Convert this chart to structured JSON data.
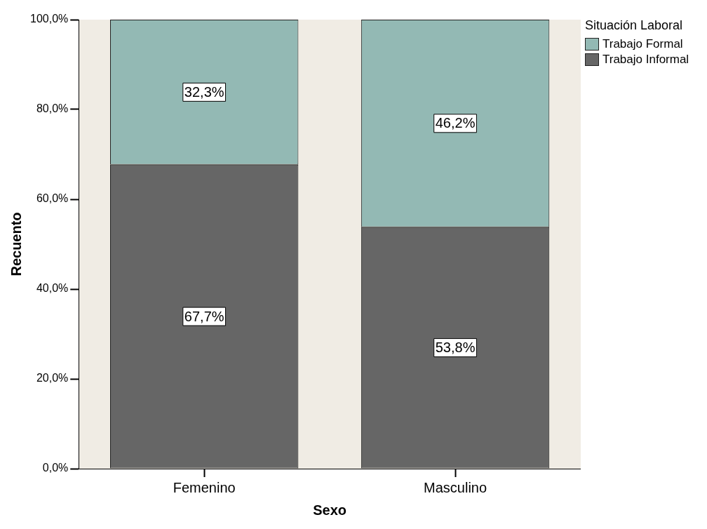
{
  "chart_data": {
    "type": "bar",
    "stacked": true,
    "xlabel": "Sexo",
    "ylabel": "Recuento",
    "legend_title": "Situación Laboral",
    "legend": "top right",
    "categories": [
      "Femenino",
      "Masculino"
    ],
    "series": [
      {
        "name": "Trabajo Informal",
        "color": "#666666",
        "values": [
          67.7,
          53.8
        ],
        "value_labels": [
          "67,7%",
          "53,8%"
        ]
      },
      {
        "name": "Trabajo Formal",
        "color": "#93b9b4",
        "values": [
          32.3,
          46.2
        ],
        "value_labels": [
          "32,3%",
          "46,2%"
        ]
      }
    ],
    "ylim": [
      0,
      100
    ],
    "yticks": [
      {
        "value": 0,
        "label": "0,0%"
      },
      {
        "value": 20,
        "label": "20,0%"
      },
      {
        "value": 40,
        "label": "40,0%"
      },
      {
        "value": 60,
        "label": "60,0%"
      },
      {
        "value": 80,
        "label": "80,0%"
      },
      {
        "value": 100,
        "label": "100,0%"
      }
    ],
    "grid": false
  }
}
